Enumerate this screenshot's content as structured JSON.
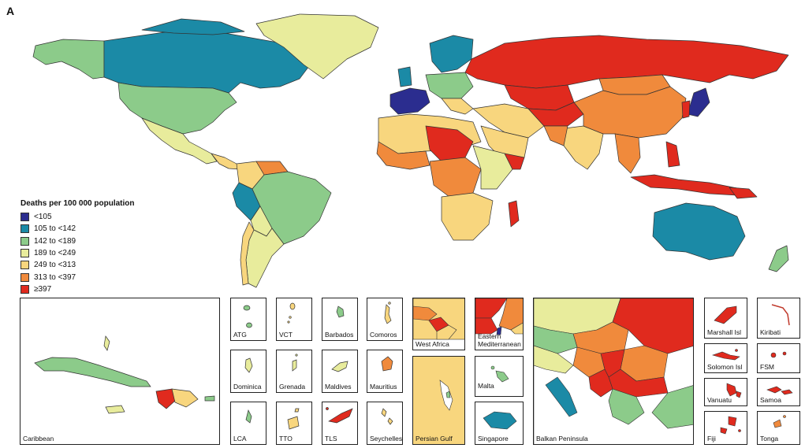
{
  "panel_letter": "A",
  "colors": {
    "c1": "#2b2d8f",
    "c2": "#1b8aa6",
    "c3": "#8ccb8a",
    "c4": "#e8ec9c",
    "c5": "#f8d67e",
    "c6": "#f08a3c",
    "c7": "#e02a1e",
    "ocean": "#ffffff",
    "outline": "#333333"
  },
  "legend": {
    "title": "Deaths per 100 000 population",
    "items": [
      {
        "label": "<105",
        "color": "#2b2d8f"
      },
      {
        "label": "105 to <142",
        "color": "#1b8aa6"
      },
      {
        "label": "142 to <189",
        "color": "#8ccb8a"
      },
      {
        "label": "189 to <249",
        "color": "#e8ec9c"
      },
      {
        "label": "249 to <313",
        "color": "#f8d67e"
      },
      {
        "label": "313 to <397",
        "color": "#f08a3c"
      },
      {
        "label": "≥397",
        "color": "#e02a1e"
      }
    ]
  },
  "insets": {
    "caribbean": "Caribbean",
    "atg": "ATG",
    "vct": "VCT",
    "barbados": "Barbados",
    "comoros": "Comoros",
    "dominica": "Dominica",
    "grenada": "Grenada",
    "maldives": "Maldives",
    "mauritius": "Mauritius",
    "lca": "LCA",
    "tto": "TTO",
    "tls": "TLS",
    "seychelles": "Seychelles",
    "west_africa": "West Africa",
    "persian_gulf": "Persian Gulf",
    "eastern_med_line1": "Eastern",
    "eastern_med_line2": "Mediterranean",
    "malta": "Malta",
    "singapore": "Singapore",
    "balkan": "Balkan Peninsula",
    "marshall": "Marshall Isl",
    "kiribati": "Kiribati",
    "solomon": "Solomon Isl",
    "fsm": "FSM",
    "vanuatu": "Vanuatu",
    "samoa": "Samoa",
    "fiji": "Fiji",
    "tonga": "Tonga"
  }
}
